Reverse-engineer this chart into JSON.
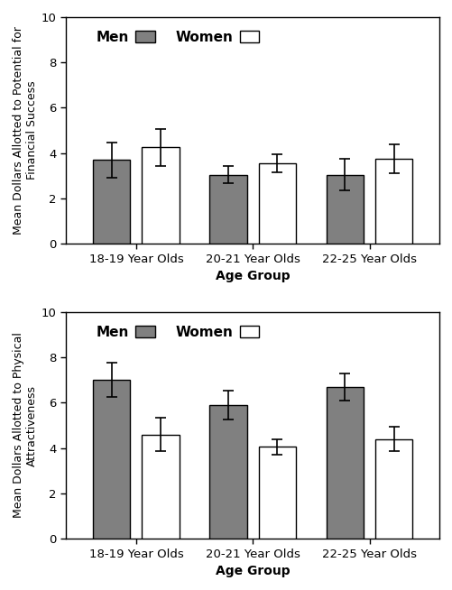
{
  "top": {
    "ylabel": "Mean Dollars Allotted to Potential for\nFinancial Success",
    "xlabel": "Age Group",
    "ylim": [
      0,
      10
    ],
    "yticks": [
      0,
      2,
      4,
      6,
      8,
      10
    ],
    "age_groups": [
      "18-19 Year Olds",
      "20-21 Year Olds",
      "22-25 Year Olds"
    ],
    "men_means": [
      3.7,
      3.05,
      3.05
    ],
    "men_errors": [
      0.78,
      0.38,
      0.7
    ],
    "women_means": [
      4.25,
      3.55,
      3.75
    ],
    "women_errors": [
      0.83,
      0.4,
      0.65
    ],
    "men_color": "#808080",
    "women_color": "#ffffff",
    "men_edge": "#000000",
    "women_edge": "#000000",
    "legend_men": "Men",
    "legend_women": "Women"
  },
  "bottom": {
    "ylabel": "Mean Dollars Allotted to Physical\nAttractiveness",
    "xlabel": "Age Group",
    "ylim": [
      0,
      10
    ],
    "yticks": [
      0,
      2,
      4,
      6,
      8,
      10
    ],
    "age_groups": [
      "18-19 Year Olds",
      "20-21 Year Olds",
      "22-25 Year Olds"
    ],
    "men_means": [
      7.0,
      5.9,
      6.7
    ],
    "men_errors": [
      0.75,
      0.65,
      0.6
    ],
    "women_means": [
      4.6,
      4.05,
      4.4
    ],
    "women_errors": [
      0.72,
      0.35,
      0.55
    ],
    "men_color": "#808080",
    "women_color": "#ffffff",
    "men_edge": "#000000",
    "women_edge": "#000000",
    "legend_men": "Men",
    "legend_women": "Women"
  },
  "bar_width": 0.32,
  "background_color": "#ffffff",
  "axes_background": "#ffffff"
}
